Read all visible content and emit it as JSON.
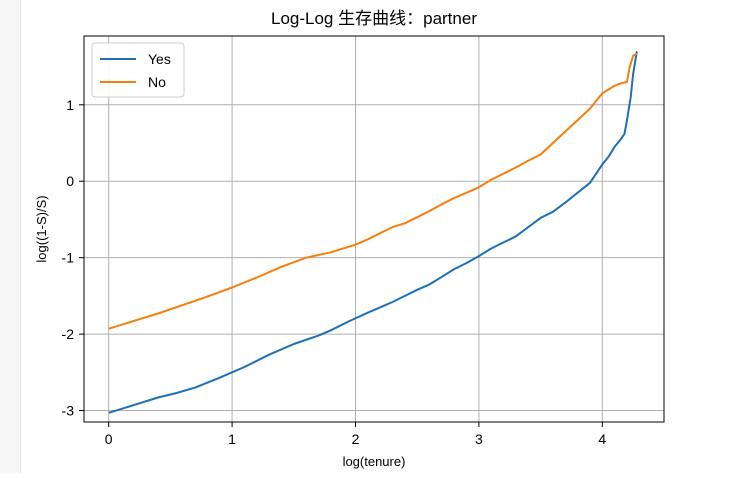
{
  "chart_data": {
    "type": "line",
    "title": "Log-Log 生存曲线：partner",
    "xlabel": "log(tenure)",
    "ylabel": "log((1-S)/S)",
    "xlim": [
      -0.2,
      4.5
    ],
    "ylim": [
      -3.15,
      1.9
    ],
    "xticks": [
      0,
      1,
      2,
      3,
      4
    ],
    "yticks": [
      -3,
      -2,
      -1,
      0,
      1
    ],
    "xtick_labels": [
      "0",
      "1",
      "2",
      "3",
      "4"
    ],
    "ytick_labels": [
      "-3",
      "-2",
      "-1",
      "0",
      "1"
    ],
    "grid": true,
    "legend_position": "top-left",
    "series": [
      {
        "name": "Yes",
        "color": "#1f6fb2",
        "x": [
          0,
          0.2,
          0.4,
          0.55,
          0.7,
          0.9,
          1.1,
          1.3,
          1.5,
          1.7,
          1.8,
          1.95,
          2.1,
          2.3,
          2.4,
          2.5,
          2.6,
          2.7,
          2.8,
          2.9,
          3.0,
          3.1,
          3.2,
          3.3,
          3.4,
          3.5,
          3.6,
          3.7,
          3.8,
          3.9,
          4.0,
          4.05,
          4.1,
          4.15,
          4.18,
          4.2,
          4.23,
          4.25,
          4.28
        ],
        "y": [
          -3.03,
          -2.93,
          -2.83,
          -2.77,
          -2.7,
          -2.57,
          -2.43,
          -2.27,
          -2.13,
          -2.02,
          -1.95,
          -1.83,
          -1.72,
          -1.58,
          -1.5,
          -1.42,
          -1.35,
          -1.25,
          -1.15,
          -1.07,
          -0.98,
          -0.88,
          -0.8,
          -0.72,
          -0.6,
          -0.48,
          -0.4,
          -0.28,
          -0.15,
          -0.02,
          0.22,
          0.32,
          0.45,
          0.55,
          0.62,
          0.8,
          1.1,
          1.4,
          1.7
        ]
      },
      {
        "name": "No",
        "color": "#f57f0e",
        "x": [
          0,
          0.2,
          0.4,
          0.6,
          0.8,
          1.0,
          1.2,
          1.4,
          1.6,
          1.8,
          2.0,
          2.1,
          2.2,
          2.3,
          2.4,
          2.5,
          2.6,
          2.7,
          2.8,
          2.9,
          3.0,
          3.1,
          3.2,
          3.3,
          3.4,
          3.5,
          3.6,
          3.7,
          3.8,
          3.9,
          4.0,
          4.05,
          4.1,
          4.15,
          4.2,
          4.22,
          4.25,
          4.28
        ],
        "y": [
          -1.93,
          -1.83,
          -1.73,
          -1.62,
          -1.51,
          -1.39,
          -1.26,
          -1.12,
          -1.0,
          -0.93,
          -0.83,
          -0.76,
          -0.68,
          -0.6,
          -0.55,
          -0.47,
          -0.39,
          -0.3,
          -0.22,
          -0.15,
          -0.08,
          0.02,
          0.1,
          0.18,
          0.27,
          0.35,
          0.5,
          0.65,
          0.8,
          0.95,
          1.15,
          1.2,
          1.25,
          1.28,
          1.3,
          1.48,
          1.64,
          1.67
        ]
      }
    ]
  }
}
